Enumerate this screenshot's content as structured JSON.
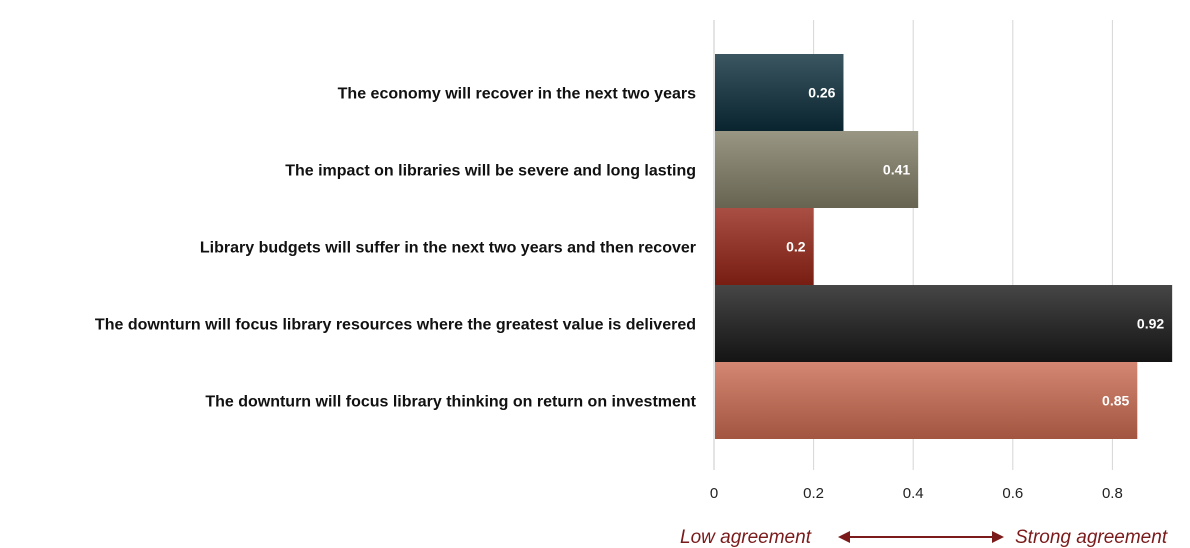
{
  "chart_data": {
    "type": "bar",
    "orientation": "horizontal",
    "title": "",
    "xlabel": "",
    "ylabel": "",
    "categories": [
      "The economy will recover in the next two years",
      "The impact on libraries will be severe and long lasting",
      "Library budgets will suffer in the next two years and then recover",
      "The downturn will focus library resources where the greatest value is delivered",
      "The downturn will focus library thinking on return on investment"
    ],
    "values": [
      0.26,
      0.41,
      0.2,
      0.92,
      0.85
    ],
    "value_labels": [
      "0.26",
      "0.41",
      "0.2",
      "0.92",
      "0.85"
    ],
    "bar_colors": [
      "#1f3a45",
      "#7d7a68",
      "#8e3328",
      "#2a2a2a",
      "#b86b56"
    ],
    "xlim": [
      0,
      0.92
    ],
    "xticks": [
      0,
      0.2,
      0.4,
      0.6,
      0.8
    ],
    "xtick_labels": [
      "0",
      "0.2",
      "0.4",
      "0.6",
      "0.8"
    ],
    "grid": "vertical",
    "legend": "none",
    "annotations": {
      "low": "Low agreement",
      "strong": "Strong agreement",
      "arrow_color": "#7a1a1a"
    }
  }
}
